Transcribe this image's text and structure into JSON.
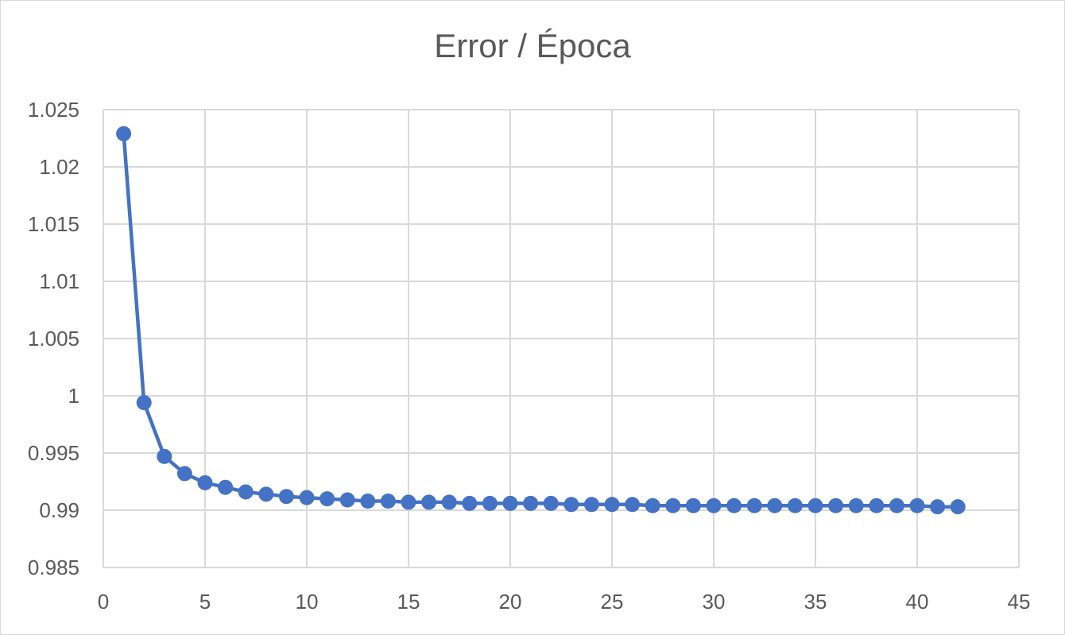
{
  "chart_data": {
    "type": "line",
    "title": "Error / Época",
    "xlabel": "",
    "ylabel": "",
    "xlim": [
      0,
      45
    ],
    "ylim": [
      0.985,
      1.025
    ],
    "x_ticks": [
      0,
      5,
      10,
      15,
      20,
      25,
      30,
      35,
      40,
      45
    ],
    "x_tick_labels": [
      "0",
      "5",
      "10",
      "15",
      "20",
      "25",
      "30",
      "35",
      "40",
      "45"
    ],
    "y_ticks": [
      0.985,
      0.99,
      0.995,
      1.0,
      1.005,
      1.01,
      1.015,
      1.02,
      1.025
    ],
    "y_tick_labels": [
      "0.985",
      "0.99",
      "0.995",
      "1",
      "1.005",
      "1.01",
      "1.015",
      "1.02",
      "1.025"
    ],
    "grid": true,
    "legend": "none",
    "color": "#4472C4",
    "series": [
      {
        "x": [
          1,
          2,
          3,
          4,
          5,
          6,
          7,
          8,
          9,
          10,
          11,
          12,
          13,
          14,
          15,
          16,
          17,
          18,
          19,
          20,
          21,
          22,
          23,
          24,
          25,
          26,
          27,
          28,
          29,
          30,
          31,
          32,
          33,
          34,
          35,
          36,
          37,
          38,
          39,
          40,
          41,
          42
        ],
        "values": [
          1.0229,
          0.9994,
          0.9947,
          0.9932,
          0.9924,
          0.992,
          0.9916,
          0.9914,
          0.9912,
          0.9911,
          0.991,
          0.9909,
          0.9908,
          0.9908,
          0.9907,
          0.9907,
          0.9907,
          0.9906,
          0.9906,
          0.9906,
          0.9906,
          0.9906,
          0.9905,
          0.9905,
          0.9905,
          0.9905,
          0.9904,
          0.9904,
          0.9904,
          0.9904,
          0.9904,
          0.9904,
          0.9904,
          0.9904,
          0.9904,
          0.9904,
          0.9904,
          0.9904,
          0.9904,
          0.9904,
          0.9903,
          0.9903
        ]
      }
    ]
  }
}
